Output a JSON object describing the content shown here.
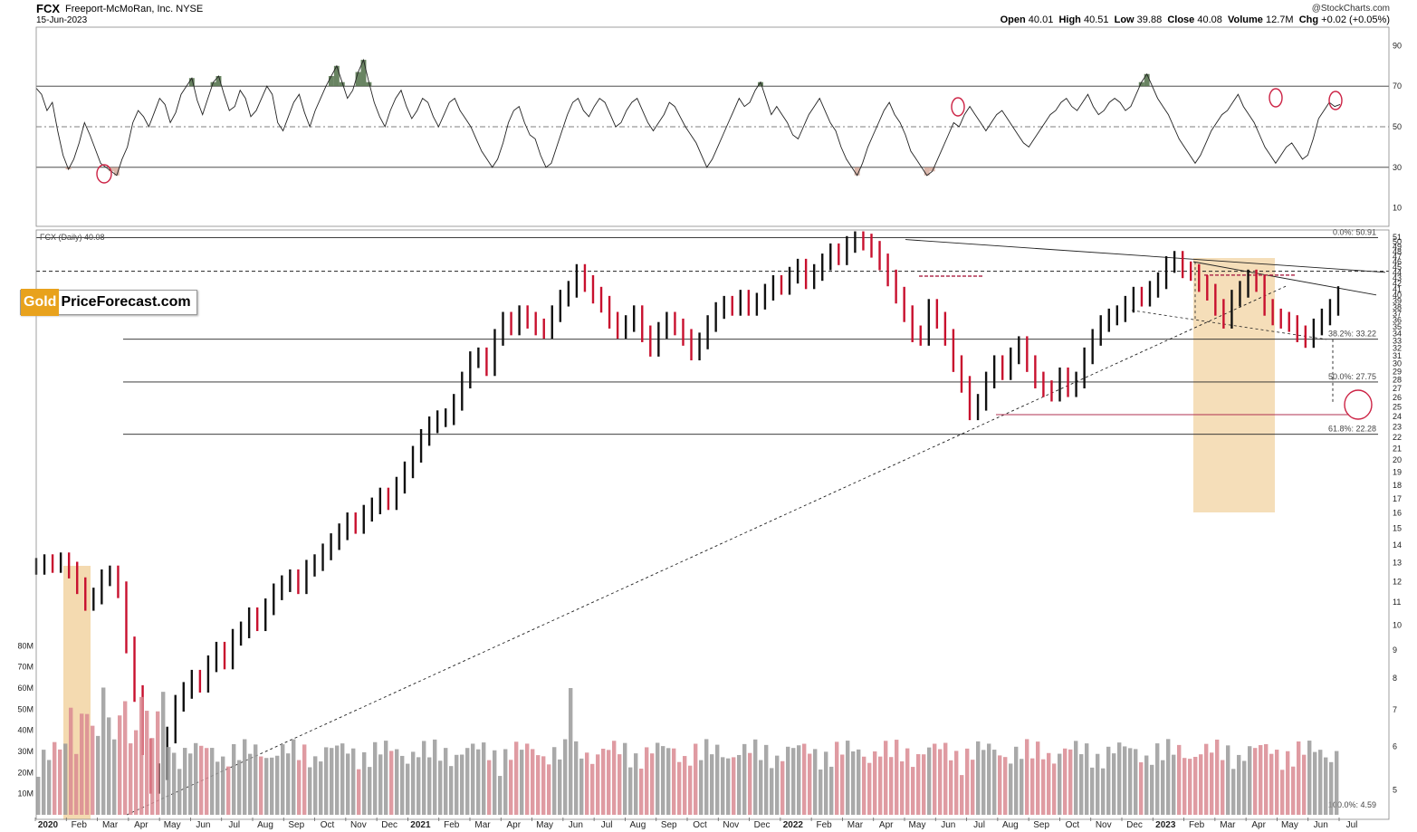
{
  "header": {
    "symbol": "FCX",
    "company": "Freeport-McMoRan, Inc.  NYSE",
    "date": "15-Jun-2023",
    "watermark": "@StockCharts.com",
    "ohlc": {
      "open_label": "Open",
      "open": "40.01",
      "high_label": "High",
      "high": "40.51",
      "low_label": "Low",
      "low": "39.88",
      "close_label": "Close",
      "close": "40.08",
      "volume_label": "Volume",
      "volume": "12.7M",
      "chg_label": "Chg",
      "chg": "+0.02 (+0.05%)"
    }
  },
  "price_label": "FCX (Daily) 40.08",
  "logo": {
    "gold": "Gold",
    "rest": "PriceForecast.com"
  },
  "colors": {
    "up": "#111111",
    "down": "#c8102e",
    "highlight": "#f2d3a2",
    "marker": "#cc2244",
    "rsi_fill": "#4f6f46"
  },
  "chart_data": {
    "type": "line",
    "subcharts": [
      "rsi",
      "price",
      "volume"
    ],
    "x_labels": [
      {
        "label": "2020",
        "year": true
      },
      {
        "label": "Feb"
      },
      {
        "label": "Mar"
      },
      {
        "label": "Apr"
      },
      {
        "label": "May"
      },
      {
        "label": "Jun"
      },
      {
        "label": "Jul"
      },
      {
        "label": "Aug"
      },
      {
        "label": "Sep"
      },
      {
        "label": "Oct"
      },
      {
        "label": "Nov"
      },
      {
        "label": "Dec"
      },
      {
        "label": "2021",
        "year": true
      },
      {
        "label": "Feb"
      },
      {
        "label": "Mar"
      },
      {
        "label": "Apr"
      },
      {
        "label": "May"
      },
      {
        "label": "Jun"
      },
      {
        "label": "Jul"
      },
      {
        "label": "Aug"
      },
      {
        "label": "Sep"
      },
      {
        "label": "Oct"
      },
      {
        "label": "Nov"
      },
      {
        "label": "Dec"
      },
      {
        "label": "2022",
        "year": true
      },
      {
        "label": "Feb"
      },
      {
        "label": "Mar"
      },
      {
        "label": "Apr"
      },
      {
        "label": "May"
      },
      {
        "label": "Jun"
      },
      {
        "label": "Jul"
      },
      {
        "label": "Aug"
      },
      {
        "label": "Sep"
      },
      {
        "label": "Oct"
      },
      {
        "label": "Nov"
      },
      {
        "label": "Dec"
      },
      {
        "label": "2023",
        "year": true
      },
      {
        "label": "Feb"
      },
      {
        "label": "Mar"
      },
      {
        "label": "Apr"
      },
      {
        "label": "May"
      },
      {
        "label": "Jun"
      },
      {
        "label": "Jul"
      }
    ],
    "rsi": {
      "ticks": [
        90,
        70,
        50,
        30,
        10
      ],
      "levels": {
        "overbought": 70,
        "mid": 50,
        "oversold": 30
      },
      "values": [
        69,
        66,
        58,
        62,
        48,
        36,
        29,
        34,
        42,
        52,
        46,
        39,
        32,
        30,
        28,
        26,
        34,
        40,
        52,
        58,
        55,
        50,
        57,
        64,
        61,
        52,
        57,
        66,
        70,
        74,
        63,
        56,
        64,
        72,
        75,
        66,
        58,
        60,
        68,
        64,
        55,
        58,
        64,
        70,
        66,
        52,
        48,
        55,
        62,
        66,
        57,
        50,
        58,
        64,
        70,
        75,
        80,
        72,
        64,
        68,
        77,
        83,
        72,
        62,
        55,
        50,
        58,
        64,
        68,
        60,
        54,
        58,
        64,
        62,
        55,
        50,
        56,
        62,
        64,
        58,
        54,
        50,
        44,
        38,
        34,
        30,
        34,
        42,
        52,
        58,
        60,
        52,
        46,
        44,
        36,
        30,
        32,
        40,
        48,
        56,
        62,
        64,
        58,
        55,
        60,
        64,
        62,
        56,
        50,
        52,
        58,
        62,
        64,
        58,
        52,
        48,
        52,
        56,
        62,
        60,
        55,
        50,
        46,
        42,
        36,
        30,
        34,
        40,
        46,
        52,
        58,
        64,
        60,
        62,
        68,
        72,
        64,
        56,
        60,
        56,
        52,
        46,
        44,
        50,
        56,
        60,
        64,
        58,
        52,
        48,
        40,
        34,
        30,
        26,
        32,
        40,
        46,
        52,
        58,
        62,
        56,
        52,
        46,
        38,
        34,
        30,
        26,
        28,
        34,
        40,
        46,
        52,
        50,
        56,
        60,
        56,
        52,
        48,
        52,
        56,
        58,
        54,
        50,
        46,
        42,
        40,
        44,
        48,
        52,
        56,
        58,
        62,
        64,
        60,
        58,
        62,
        66,
        60,
        56,
        58,
        62,
        64,
        62,
        58,
        60,
        66,
        72,
        76,
        70,
        64,
        60,
        56,
        50,
        44,
        40,
        36,
        32,
        36,
        42,
        48,
        52,
        56,
        58,
        62,
        66,
        60,
        56,
        52,
        46,
        40,
        36,
        32,
        36,
        40,
        42,
        38,
        34,
        36,
        44,
        54,
        58,
        62,
        60,
        61
      ]
    },
    "price": {
      "scale": "log",
      "ylim": [
        4.59,
        51
      ],
      "ticks": [
        51,
        50,
        49,
        48,
        47,
        46,
        45,
        44,
        43,
        42,
        41,
        40,
        39,
        38,
        37,
        36,
        35,
        34,
        33,
        32,
        31,
        30,
        29,
        28,
        27,
        26,
        25,
        24,
        23,
        22,
        21,
        20,
        19,
        18,
        17,
        16,
        15,
        14,
        13,
        12,
        11,
        10,
        9,
        8,
        7,
        6,
        5
      ],
      "fib_levels": [
        {
          "label": "0.0%: 50.91",
          "value": 50.91
        },
        {
          "label": "38.2%: 33.22",
          "value": 33.22
        },
        {
          "label": "50.0%: 27.75",
          "value": 27.75
        },
        {
          "label": "61.8%: 22.28",
          "value": 22.28
        },
        {
          "label": "100.0%: 4.59",
          "value": 4.59
        }
      ],
      "weekly_close": [
        12.8,
        13.0,
        12.9,
        13.1,
        12.6,
        11.8,
        11.0,
        11.3,
        12.2,
        12.4,
        11.6,
        9.2,
        7.5,
        6.0,
        5.1,
        5.4,
        6.3,
        7.2,
        7.6,
        8.0,
        7.8,
        8.5,
        9.0,
        8.6,
        9.5,
        9.8,
        10.4,
        10.1,
        10.8,
        11.5,
        11.9,
        12.2,
        11.8,
        12.7,
        13.0,
        13.6,
        14.2,
        14.8,
        15.5,
        15.2,
        16.0,
        16.5,
        17.2,
        16.8,
        18.0,
        19.2,
        20.5,
        22.0,
        23.2,
        23.8,
        24.0,
        25.5,
        28.0,
        30.5,
        31.0,
        29.5,
        33.5,
        36.0,
        35.0,
        37.0,
        36.0,
        35.0,
        34.5,
        37.0,
        39.5,
        41.0,
        44.0,
        42.0,
        40.0,
        38.5,
        36.0,
        34.5,
        35.5,
        37.0,
        34.0,
        32.0,
        34.5,
        36.0,
        35.0,
        33.5,
        31.5,
        33.0,
        35.5,
        37.5,
        38.5,
        38.0,
        39.5,
        38.0,
        39.0,
        40.5,
        42.0,
        41.5,
        43.5,
        45.0,
        42.5,
        44.0,
        46.0,
        48.0,
        47.0,
        49.5,
        50.5,
        50.0,
        48.5,
        46.0,
        43.0,
        40.0,
        37.0,
        34.0,
        33.5,
        38.0,
        36.0,
        33.5,
        30.0,
        27.5,
        24.5,
        25.5,
        28.0,
        30.0,
        29.0,
        31.0,
        32.5,
        30.0,
        28.0,
        27.0,
        26.5,
        28.5,
        27.0,
        28.0,
        31.0,
        33.5,
        35.5,
        36.5,
        37.0,
        38.5,
        40.0,
        39.5,
        41.0,
        42.5,
        45.5,
        46.5,
        44.5,
        44.0,
        42.0,
        40.5,
        38.0,
        36.0,
        39.5,
        41.0,
        43.0,
        42.0,
        38.0,
        36.5,
        36.0,
        35.5,
        34.0,
        33.2,
        35.0,
        36.5,
        38.0,
        40.1
      ],
      "pivot_labels": []
    },
    "volume": {
      "ticks": [
        "80M",
        "70M",
        "60M",
        "50M",
        "40M",
        "30M",
        "20M",
        "10M"
      ],
      "tick_values": [
        80,
        70,
        60,
        50,
        40,
        30,
        20,
        10
      ],
      "unit": "M"
    }
  }
}
